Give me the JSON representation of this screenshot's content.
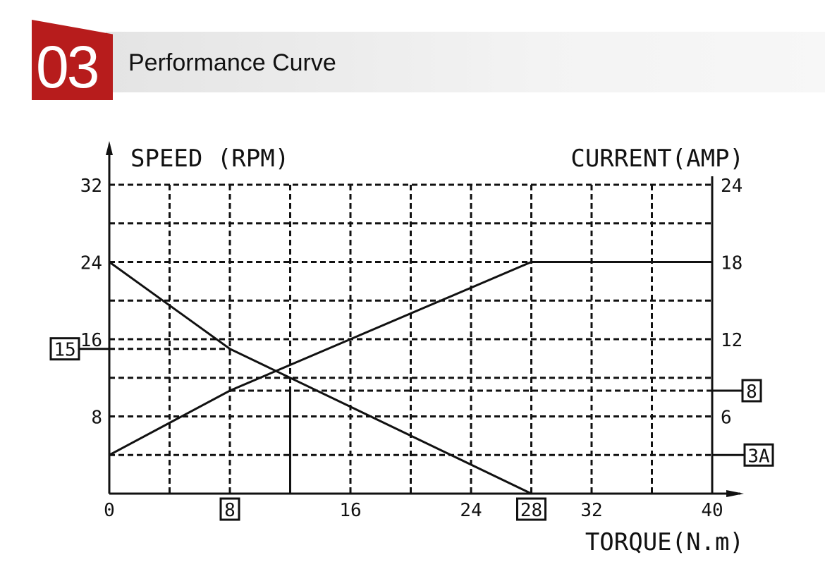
{
  "header": {
    "number": "03",
    "title": "Performance Curve"
  },
  "chart_data": {
    "type": "line",
    "xlabel": "TORQUE(N.m)",
    "ylabel": "SPEED (RPM)",
    "y2label": "CURRENT(AMP)",
    "xlim": [
      0,
      40
    ],
    "ylim": [
      0,
      32
    ],
    "y2lim": [
      0,
      24
    ],
    "grid": true,
    "xticks": [
      "0",
      "8",
      "16",
      "24",
      "28",
      "32",
      "40"
    ],
    "yticks": [
      "8",
      "16",
      "24",
      "32"
    ],
    "y2ticks": [
      "6",
      "12",
      "18",
      "24"
    ],
    "series": [
      {
        "name": "speed",
        "axis": "left",
        "x": [
          0,
          8,
          28
        ],
        "y": [
          24,
          15,
          0
        ]
      },
      {
        "name": "current",
        "axis": "right",
        "x": [
          0,
          8,
          28,
          40
        ],
        "y": [
          3,
          8,
          18,
          18
        ]
      }
    ],
    "annotations": {
      "speed_box": "15",
      "current_box": "8",
      "current_min_box": "3A",
      "torque_box_1": "8",
      "torque_box_2": "28",
      "marker_torque": 12
    }
  }
}
